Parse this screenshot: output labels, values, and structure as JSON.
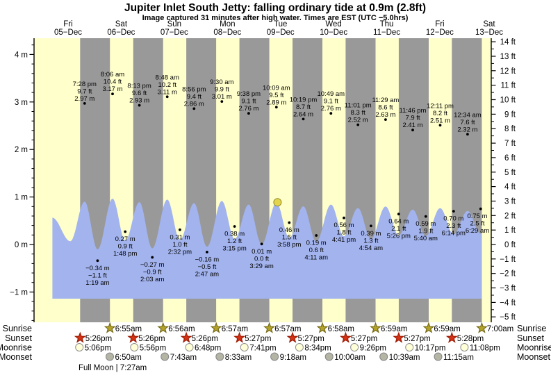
{
  "title": "Jupiter Inlet South Jetty: falling  ordinary tide at 0.9m (2.8ft)",
  "subtitle": "Image captured 31 minutes after high water. Times are EST (UTC −5.0hrs)",
  "chart_data": {
    "type": "area",
    "title": "Jupiter Inlet South Jetty: falling  ordinary tide at 0.9m (2.8ft)",
    "subtitle": "Image captured 31 minutes after high water. Times are EST (UTC −5.0hrs)",
    "days": [
      {
        "dow": "Fri",
        "date": "05−Dec"
      },
      {
        "dow": "Sat",
        "date": "06−Dec"
      },
      {
        "dow": "Sun",
        "date": "07−Dec"
      },
      {
        "dow": "Mon",
        "date": "08−Dec"
      },
      {
        "dow": "Tue",
        "date": "09−Dec"
      },
      {
        "dow": "Wed",
        "date": "10−Dec"
      },
      {
        "dow": "Thu",
        "date": "11−Dec"
      },
      {
        "dow": "Fri",
        "date": "12−Dec"
      },
      {
        "dow": "Sat",
        "date": "13−Dec"
      }
    ],
    "y_axis_left_labels": [
      "4 m",
      "3 m",
      "2 m",
      "1 m",
      "0 m",
      "−1 m"
    ],
    "y_axis_right_labels": [
      "14 ft",
      "13 ft",
      "12 ft",
      "11 ft",
      "10 ft",
      "9 ft",
      "8 ft",
      "7 ft",
      "6 ft",
      "5 ft",
      "4 ft",
      "3 ft",
      "2 ft",
      "1 ft",
      "0 ft",
      "−1 ft",
      "−2 ft",
      "−3 ft",
      "−4 ft",
      "−5 ft"
    ],
    "tides": [
      {
        "type": "high",
        "day": 0,
        "time": "7:28 pm",
        "ft": 9.7,
        "m": 2.97
      },
      {
        "type": "low",
        "day": 1,
        "time": "1:19 am",
        "ft": -1.1,
        "m": -0.34
      },
      {
        "type": "high",
        "day": 1,
        "time": "8:06 am",
        "ft": 10.4,
        "m": 3.17
      },
      {
        "type": "low",
        "day": 1,
        "time": "1:48 pm",
        "ft": 0.9,
        "m": 0.27
      },
      {
        "type": "high",
        "day": 1,
        "time": "8:13 pm",
        "ft": 9.6,
        "m": 2.93
      },
      {
        "type": "low",
        "day": 2,
        "time": "2:03 am",
        "ft": -0.9,
        "m": -0.27
      },
      {
        "type": "high",
        "day": 2,
        "time": "8:48 am",
        "ft": 10.2,
        "m": 3.11
      },
      {
        "type": "low",
        "day": 2,
        "time": "2:32 pm",
        "ft": 1.0,
        "m": 0.31
      },
      {
        "type": "high",
        "day": 2,
        "time": "8:56 pm",
        "ft": 9.4,
        "m": 2.86
      },
      {
        "type": "low",
        "day": 3,
        "time": "2:47 am",
        "ft": -0.5,
        "m": -0.16
      },
      {
        "type": "high",
        "day": 3,
        "time": "9:30 am",
        "ft": 9.9,
        "m": 3.01
      },
      {
        "type": "low",
        "day": 3,
        "time": "3:15 pm",
        "ft": 1.2,
        "m": 0.38
      },
      {
        "type": "high",
        "day": 3,
        "time": "9:38 pm",
        "ft": 9.1,
        "m": 2.76
      },
      {
        "type": "low",
        "day": 4,
        "time": "3:29 am",
        "ft": 0.0,
        "m": 0.01
      },
      {
        "type": "high",
        "day": 4,
        "time": "10:09 am",
        "ft": 9.5,
        "m": 2.89
      },
      {
        "type": "low",
        "day": 4,
        "time": "3:58 pm",
        "ft": 1.5,
        "m": 0.46
      },
      {
        "type": "high",
        "day": 4,
        "time": "10:19 pm",
        "ft": 8.7,
        "m": 2.64
      },
      {
        "type": "low",
        "day": 5,
        "time": "4:11 am",
        "ft": 0.6,
        "m": 0.19
      },
      {
        "type": "high",
        "day": 5,
        "time": "10:49 am",
        "ft": 9.1,
        "m": 2.76
      },
      {
        "type": "low",
        "day": 5,
        "time": "4:41 pm",
        "ft": 1.8,
        "m": 0.56
      },
      {
        "type": "high",
        "day": 5,
        "time": "11:01 pm",
        "ft": 8.3,
        "m": 2.52
      },
      {
        "type": "low",
        "day": 6,
        "time": "4:54 am",
        "ft": 1.3,
        "m": 0.39
      },
      {
        "type": "high",
        "day": 6,
        "time": "11:29 am",
        "ft": 8.6,
        "m": 2.63
      },
      {
        "type": "low",
        "day": 6,
        "time": "5:26 pm",
        "ft": 2.1,
        "m": 0.64
      },
      {
        "type": "high",
        "day": 6,
        "time": "11:46 pm",
        "ft": 7.9,
        "m": 2.41
      },
      {
        "type": "low",
        "day": 7,
        "time": "5:40 am",
        "ft": 1.9,
        "m": 0.59
      },
      {
        "type": "high",
        "day": 7,
        "time": "12:11 pm",
        "ft": 8.2,
        "m": 2.51
      },
      {
        "type": "low",
        "day": 7,
        "time": "6:14 pm",
        "ft": 2.3,
        "m": 0.7
      },
      {
        "type": "high",
        "day": 8,
        "time": "12:34 am",
        "ft": 7.6,
        "m": 2.32
      },
      {
        "type": "low",
        "day": 8,
        "time": "6:29 am",
        "ft": 2.5,
        "m": 0.75
      }
    ],
    "current_marker": {
      "day": 4,
      "time": "10:40 am",
      "height_label": "0.9m (2.8ft)"
    }
  },
  "sun_moon": {
    "rows": [
      {
        "label": "Sunrise",
        "icon": "sunrise-star",
        "events": [
          {
            "day": 1,
            "time": "6:55am"
          },
          {
            "day": 2,
            "time": "6:56am"
          },
          {
            "day": 3,
            "time": "6:57am"
          },
          {
            "day": 4,
            "time": "6:57am"
          },
          {
            "day": 5,
            "time": "6:58am"
          },
          {
            "day": 6,
            "time": "6:59am"
          },
          {
            "day": 7,
            "time": "6:59am"
          },
          {
            "day": 8,
            "time": "7:00am"
          }
        ]
      },
      {
        "label": "Sunset",
        "icon": "sunset-star",
        "events": [
          {
            "day": 0,
            "time": "5:26pm"
          },
          {
            "day": 1,
            "time": "5:26pm"
          },
          {
            "day": 2,
            "time": "5:26pm"
          },
          {
            "day": 3,
            "time": "5:27pm"
          },
          {
            "day": 4,
            "time": "5:27pm"
          },
          {
            "day": 5,
            "time": "5:27pm"
          },
          {
            "day": 6,
            "time": "5:27pm"
          },
          {
            "day": 7,
            "time": "5:28pm"
          }
        ]
      },
      {
        "label": "Moonrise",
        "icon": "moonrise-circle",
        "events": [
          {
            "day": 0,
            "time": "5:06pm"
          },
          {
            "day": 1,
            "time": "5:56pm"
          },
          {
            "day": 2,
            "time": "6:48pm"
          },
          {
            "day": 3,
            "time": "7:41pm"
          },
          {
            "day": 4,
            "time": "8:34pm"
          },
          {
            "day": 5,
            "time": "9:26pm"
          },
          {
            "day": 6,
            "time": "10:17pm"
          },
          {
            "day": 7,
            "time": "11:08pm"
          }
        ]
      },
      {
        "label": "Moonset",
        "icon": "moonset-circle",
        "events": [
          {
            "day": 1,
            "time": "6:50am"
          },
          {
            "day": 2,
            "time": "7:43am"
          },
          {
            "day": 3,
            "time": "8:33am"
          },
          {
            "day": 4,
            "time": "9:18am"
          },
          {
            "day": 5,
            "time": "10:00am"
          },
          {
            "day": 6,
            "time": "10:39am"
          },
          {
            "day": 7,
            "time": "11:15am"
          }
        ]
      }
    ],
    "full_moon_note": "Full Moon | 7:27am"
  },
  "colors": {
    "day_band": "#ffffcc",
    "night_band": "#999999",
    "tide_fill": "#a2b3ee",
    "day_label": "#e60000",
    "marker_fill": "#e3d44e",
    "marker_stroke": "#8f8b2e",
    "sunrise_star_fill": "#b3a229",
    "sunrise_star_stroke": "#756a16",
    "sunset_star_fill": "#d53215",
    "sunset_star_stroke": "#9c1d05",
    "moonrise_fill": "#ffffd8",
    "moonrise_stroke": "#8f8f8f",
    "moonset_fill": "#b5b5a5",
    "moonset_stroke": "#858585"
  }
}
